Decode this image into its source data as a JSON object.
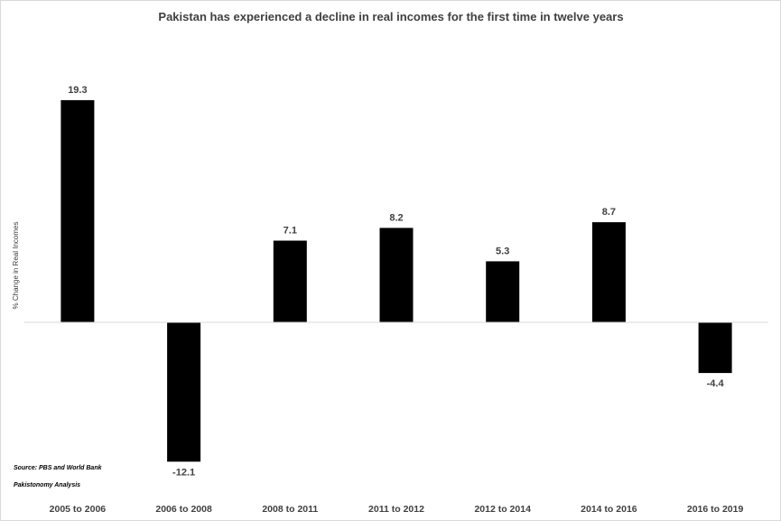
{
  "chart_data": {
    "type": "bar",
    "title": "Pakistan has experienced a decline in real incomes for the first time in twelve years",
    "ylabel": "% Change in Real Incomes",
    "xlabel": "",
    "categories": [
      "2005 to 2006",
      "2006 to 2008",
      "2008 to 2011",
      "2011 to 2012",
      "2012 to 2014",
      "2014 to 2016",
      "2016 to 2019"
    ],
    "values": [
      19.3,
      -12.1,
      7.1,
      8.2,
      5.3,
      8.7,
      -4.4
    ],
    "data_labels": [
      "19.3",
      "-12.1",
      "7.1",
      "8.2",
      "5.3",
      "8.7",
      "-4.4"
    ],
    "ylim": [
      -14,
      24
    ],
    "grid": false,
    "legend": "none",
    "bar_color": "#000000",
    "axis_color": "#d9d9d9",
    "text_color": "#404040"
  },
  "notes": {
    "source": "Source: PBS and World Bank",
    "analysis": "Pakistonomy Analysis"
  }
}
